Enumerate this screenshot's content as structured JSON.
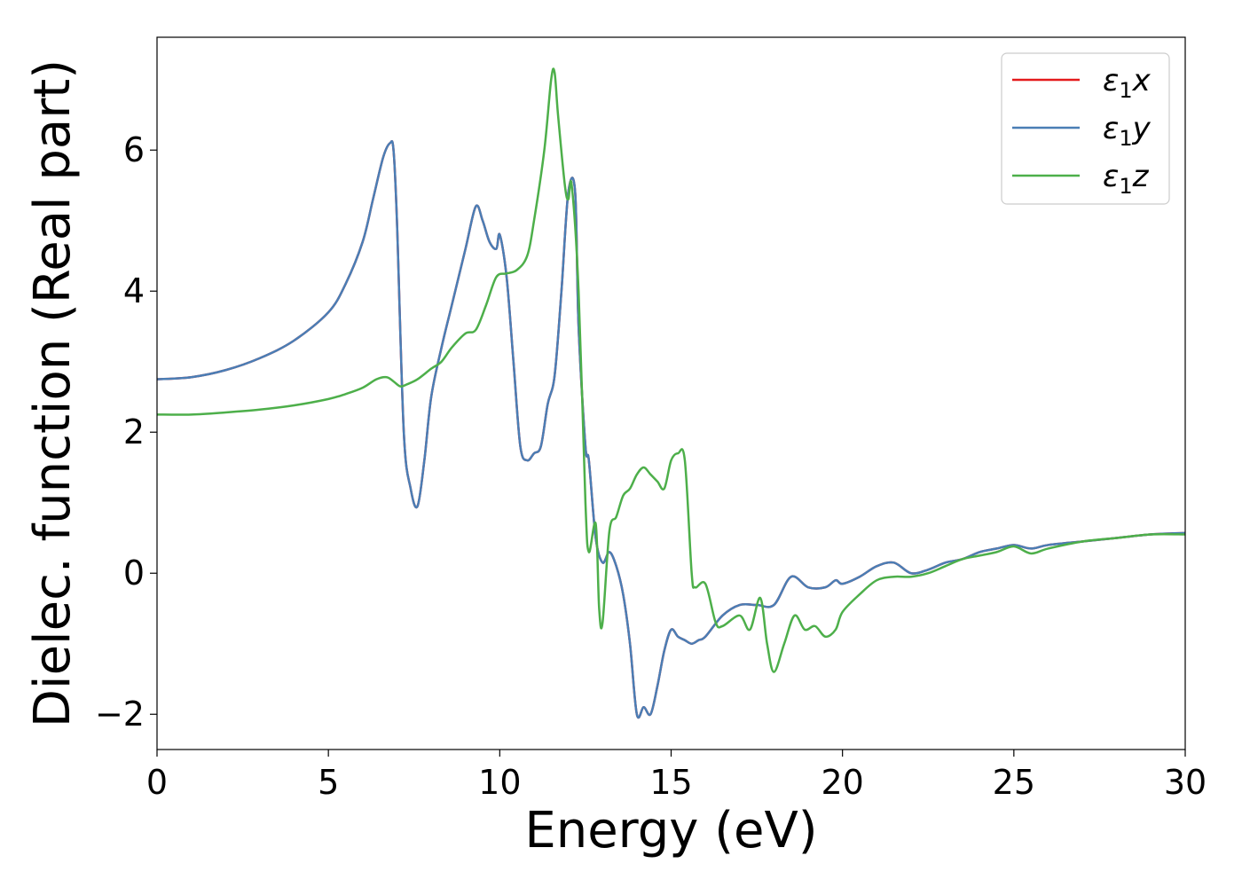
{
  "chart_data": {
    "type": "line",
    "title": "",
    "xlabel": "Energy (eV)",
    "ylabel": "Dielec. function (Real part)",
    "xlim": [
      0,
      30
    ],
    "ylim": [
      -2.5,
      7.6
    ],
    "xticks": [
      0,
      5,
      10,
      15,
      20,
      25,
      30
    ],
    "xtick_labels": [
      "0",
      "5",
      "10",
      "15",
      "20",
      "25",
      "30"
    ],
    "yticks": [
      -2,
      0,
      2,
      4,
      6
    ],
    "ytick_labels": [
      "−2",
      "0",
      "2",
      "4",
      "6"
    ],
    "grid": false,
    "legend_position": "top-right",
    "series": [
      {
        "name": "ε₁x",
        "legend_base": "ε",
        "legend_sub": "1",
        "legend_var": "x",
        "color": "#e41a1c",
        "x": [
          0,
          1,
          2,
          3,
          4,
          5,
          5.5,
          6,
          6.3,
          6.6,
          6.8,
          6.9,
          7.0,
          7.2,
          7.4,
          7.6,
          7.8,
          8.0,
          8.3,
          8.6,
          9.0,
          9.3,
          9.5,
          9.7,
          9.9,
          10.0,
          10.2,
          10.4,
          10.6,
          10.8,
          11.0,
          11.2,
          11.4,
          11.6,
          11.8,
          12.0,
          12.2,
          12.3,
          12.5,
          12.6,
          12.8,
          13.0,
          13.2,
          13.4,
          13.6,
          13.8,
          14.0,
          14.2,
          14.4,
          14.6,
          14.8,
          15.0,
          15.2,
          15.4,
          15.6,
          15.8,
          16.0,
          16.5,
          17.0,
          17.5,
          18.0,
          18.5,
          19.0,
          19.5,
          19.8,
          20.0,
          20.5,
          21.0,
          21.5,
          22.0,
          22.5,
          23.0,
          23.5,
          24.0,
          24.5,
          25.0,
          25.5,
          26.0,
          27.0,
          28.0,
          29.0,
          30.0
        ],
        "y": [
          2.75,
          2.78,
          2.88,
          3.05,
          3.3,
          3.7,
          4.1,
          4.7,
          5.3,
          5.9,
          6.1,
          6.0,
          5.0,
          2.0,
          1.2,
          0.95,
          1.6,
          2.5,
          3.2,
          3.8,
          4.6,
          5.2,
          5.0,
          4.7,
          4.6,
          4.8,
          4.2,
          3.0,
          1.8,
          1.6,
          1.7,
          1.8,
          2.4,
          2.8,
          4.0,
          5.4,
          5.4,
          3.5,
          1.8,
          1.6,
          0.5,
          0.15,
          0.3,
          0.1,
          -0.3,
          -1.0,
          -2.0,
          -1.9,
          -2.0,
          -1.6,
          -1.1,
          -0.8,
          -0.9,
          -0.95,
          -1.0,
          -0.95,
          -0.9,
          -0.6,
          -0.45,
          -0.45,
          -0.45,
          -0.05,
          -0.2,
          -0.2,
          -0.1,
          -0.15,
          -0.05,
          0.1,
          0.15,
          0.0,
          0.05,
          0.15,
          0.2,
          0.3,
          0.35,
          0.4,
          0.35,
          0.4,
          0.45,
          0.5,
          0.55,
          0.57
        ]
      },
      {
        "name": "ε₁y",
        "legend_base": "ε",
        "legend_sub": "1",
        "legend_var": "y",
        "color": "#4a7eb5",
        "x": [
          0,
          1,
          2,
          3,
          4,
          5,
          5.5,
          6,
          6.3,
          6.6,
          6.8,
          6.9,
          7.0,
          7.2,
          7.4,
          7.6,
          7.8,
          8.0,
          8.3,
          8.6,
          9.0,
          9.3,
          9.5,
          9.7,
          9.9,
          10.0,
          10.2,
          10.4,
          10.6,
          10.8,
          11.0,
          11.2,
          11.4,
          11.6,
          11.8,
          12.0,
          12.2,
          12.3,
          12.5,
          12.6,
          12.8,
          13.0,
          13.2,
          13.4,
          13.6,
          13.8,
          14.0,
          14.2,
          14.4,
          14.6,
          14.8,
          15.0,
          15.2,
          15.4,
          15.6,
          15.8,
          16.0,
          16.5,
          17.0,
          17.5,
          18.0,
          18.5,
          19.0,
          19.5,
          19.8,
          20.0,
          20.5,
          21.0,
          21.5,
          22.0,
          22.5,
          23.0,
          23.5,
          24.0,
          24.5,
          25.0,
          25.5,
          26.0,
          27.0,
          28.0,
          29.0,
          30.0
        ],
        "y": [
          2.75,
          2.78,
          2.88,
          3.05,
          3.3,
          3.7,
          4.1,
          4.7,
          5.3,
          5.9,
          6.1,
          6.0,
          5.0,
          2.0,
          1.2,
          0.95,
          1.6,
          2.5,
          3.2,
          3.8,
          4.6,
          5.2,
          5.0,
          4.7,
          4.6,
          4.8,
          4.2,
          3.0,
          1.8,
          1.6,
          1.7,
          1.8,
          2.4,
          2.8,
          4.0,
          5.4,
          5.4,
          3.5,
          1.8,
          1.6,
          0.5,
          0.15,
          0.3,
          0.1,
          -0.3,
          -1.0,
          -2.0,
          -1.9,
          -2.0,
          -1.6,
          -1.1,
          -0.8,
          -0.9,
          -0.95,
          -1.0,
          -0.95,
          -0.9,
          -0.6,
          -0.45,
          -0.45,
          -0.45,
          -0.05,
          -0.2,
          -0.2,
          -0.1,
          -0.15,
          -0.05,
          0.1,
          0.15,
          0.0,
          0.05,
          0.15,
          0.2,
          0.3,
          0.35,
          0.4,
          0.35,
          0.4,
          0.45,
          0.5,
          0.55,
          0.57
        ]
      },
      {
        "name": "ε₁z",
        "legend_base": "ε",
        "legend_sub": "1",
        "legend_var": "z",
        "color": "#4daf4a",
        "x": [
          0,
          1,
          2,
          3,
          4,
          5,
          5.5,
          6,
          6.4,
          6.7,
          6.9,
          7.1,
          7.3,
          7.6,
          8.0,
          8.3,
          8.6,
          9.0,
          9.3,
          9.6,
          9.9,
          10.2,
          10.5,
          10.8,
          11.0,
          11.3,
          11.5,
          11.6,
          11.7,
          11.9,
          12.0,
          12.1,
          12.3,
          12.5,
          12.6,
          12.8,
          12.9,
          13.0,
          13.2,
          13.4,
          13.6,
          13.8,
          14.0,
          14.2,
          14.4,
          14.6,
          14.8,
          15.0,
          15.2,
          15.4,
          15.6,
          15.7,
          16.0,
          16.3,
          16.5,
          17.0,
          17.3,
          17.6,
          17.8,
          18.0,
          18.3,
          18.6,
          18.9,
          19.2,
          19.5,
          19.8,
          20.0,
          20.5,
          21.0,
          21.5,
          22.0,
          22.5,
          23.0,
          23.5,
          24.0,
          24.5,
          25.0,
          25.5,
          26.0,
          27.0,
          28.0,
          29.0,
          30.0
        ],
        "y": [
          2.25,
          2.25,
          2.28,
          2.32,
          2.38,
          2.47,
          2.54,
          2.63,
          2.75,
          2.78,
          2.72,
          2.65,
          2.68,
          2.75,
          2.9,
          3.0,
          3.2,
          3.4,
          3.45,
          3.8,
          4.2,
          4.25,
          4.3,
          4.5,
          5.0,
          6.0,
          7.0,
          7.1,
          6.5,
          5.5,
          5.3,
          5.5,
          4.0,
          1.0,
          0.3,
          0.7,
          -0.5,
          -0.7,
          0.6,
          0.8,
          1.1,
          1.2,
          1.4,
          1.5,
          1.4,
          1.3,
          1.2,
          1.6,
          1.7,
          1.6,
          0.0,
          -0.2,
          -0.15,
          -0.7,
          -0.75,
          -0.6,
          -0.8,
          -0.35,
          -1.0,
          -1.4,
          -1.0,
          -0.6,
          -0.8,
          -0.75,
          -0.9,
          -0.8,
          -0.55,
          -0.3,
          -0.1,
          -0.05,
          -0.05,
          0.0,
          0.1,
          0.2,
          0.25,
          0.3,
          0.38,
          0.28,
          0.35,
          0.45,
          0.5,
          0.55,
          0.55
        ]
      }
    ]
  }
}
